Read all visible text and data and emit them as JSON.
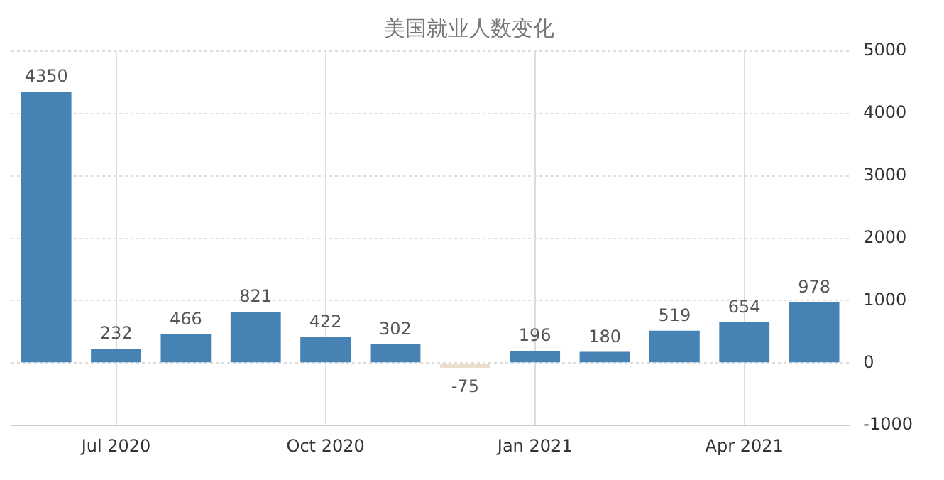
{
  "chart_data": {
    "type": "bar",
    "title": "美国就业人数变化",
    "categories": [
      null,
      "Jul 2020",
      null,
      null,
      "Oct 2020",
      null,
      null,
      "Jan 2021",
      null,
      null,
      "Apr 2021",
      null
    ],
    "values": [
      4350,
      232,
      466,
      821,
      422,
      302,
      -75,
      196,
      180,
      519,
      654,
      978
    ],
    "colors": [
      "#4682b4",
      "#4682b4",
      "#4682b4",
      "#4682b4",
      "#4682b4",
      "#4682b4",
      "#eadfcc",
      "#4682b4",
      "#4682b4",
      "#4682b4",
      "#4682b4",
      "#4682b4"
    ],
    "ylim": [
      -1000,
      5000
    ],
    "yticks": [
      -1000,
      0,
      1000,
      2000,
      3000,
      4000,
      5000
    ],
    "grid": true,
    "data_labels": true
  }
}
